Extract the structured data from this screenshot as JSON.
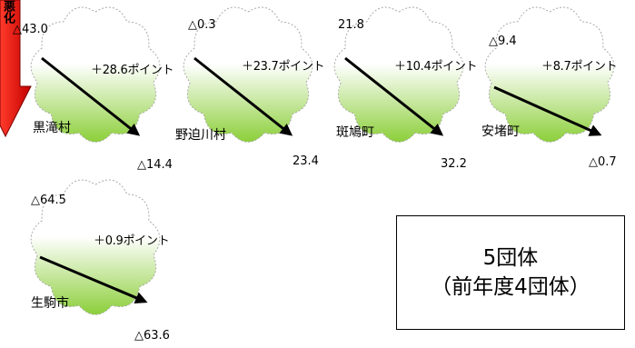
{
  "side_arrow": {
    "label": "悪化",
    "color": "#e00000"
  },
  "colors": {
    "cloud_fill": "#8ccf3a",
    "cloud_stroke": "#a9a9a9",
    "arrow": "#000000"
  },
  "groups": [
    {
      "name": "黒滝村",
      "before": "△43.0",
      "change": "＋28.6ポイント",
      "after": "△14.4"
    },
    {
      "name": "野迫川村",
      "before": "△0.3",
      "change": "＋23.7ポイント",
      "after": "23.4"
    },
    {
      "name": "斑鳩町",
      "before": "21.8",
      "change": "＋10.4ポイント",
      "after": "32.2"
    },
    {
      "name": "安堵町",
      "before": "△9.4",
      "change": "＋8.7ポイント",
      "after": "△0.7"
    },
    {
      "name": "生駒市",
      "before": "△64.5",
      "change": "＋0.9ポイント",
      "after": "△63.6"
    }
  ],
  "summary": {
    "line1": "5団体",
    "line2": "（前年度4団体）"
  }
}
